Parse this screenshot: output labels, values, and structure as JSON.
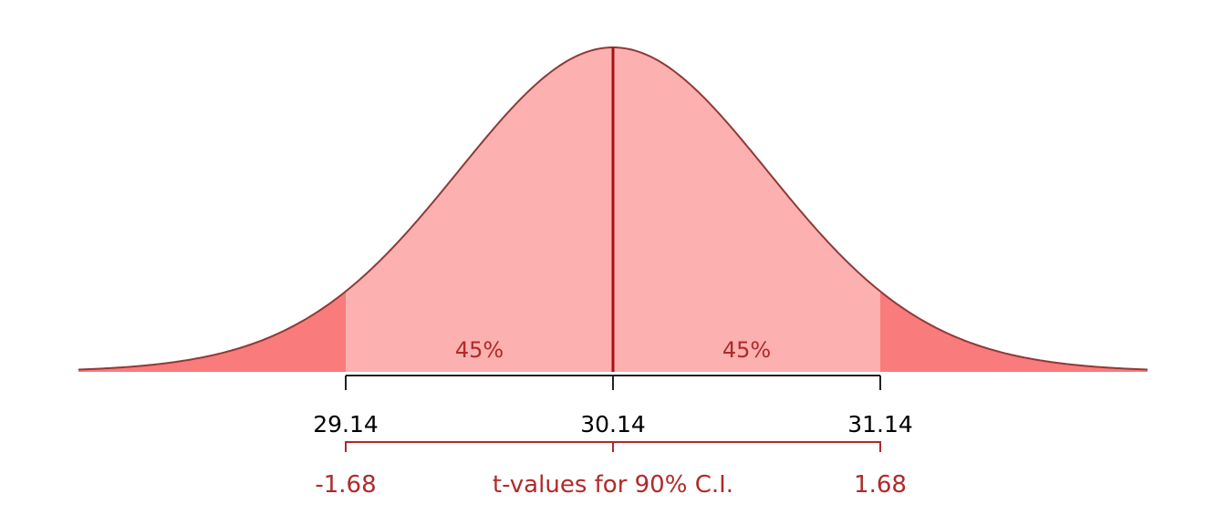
{
  "chart_data": {
    "type": "area",
    "distribution": "t",
    "mean": 30.14,
    "margin_of_error": 1.0,
    "t_critical": 1.68,
    "confidence_level": 0.9,
    "x_range": [
      28.14,
      32.14
    ],
    "colors": {
      "center_fill": "#fcb0b0",
      "tail_fill": "#fa7b7b",
      "curve": "#8e3a3a",
      "center_line": "#aa1111",
      "baseline": "#222222",
      "t_bracket": "#b02a2a",
      "t_text": "#b02a2a"
    },
    "regions": [
      {
        "from": 29.14,
        "to": 30.14,
        "label": "45%"
      },
      {
        "from": 30.14,
        "to": 31.14,
        "label": "45%"
      }
    ],
    "x_ticks": [
      {
        "value": 29.14,
        "label": "29.14",
        "t_label": "-1.68"
      },
      {
        "value": 30.14,
        "label": "30.14",
        "t_label": ""
      },
      {
        "value": 31.14,
        "label": "31.14",
        "t_label": "1.68"
      }
    ],
    "t_caption": "t-values for 90% C.I."
  }
}
